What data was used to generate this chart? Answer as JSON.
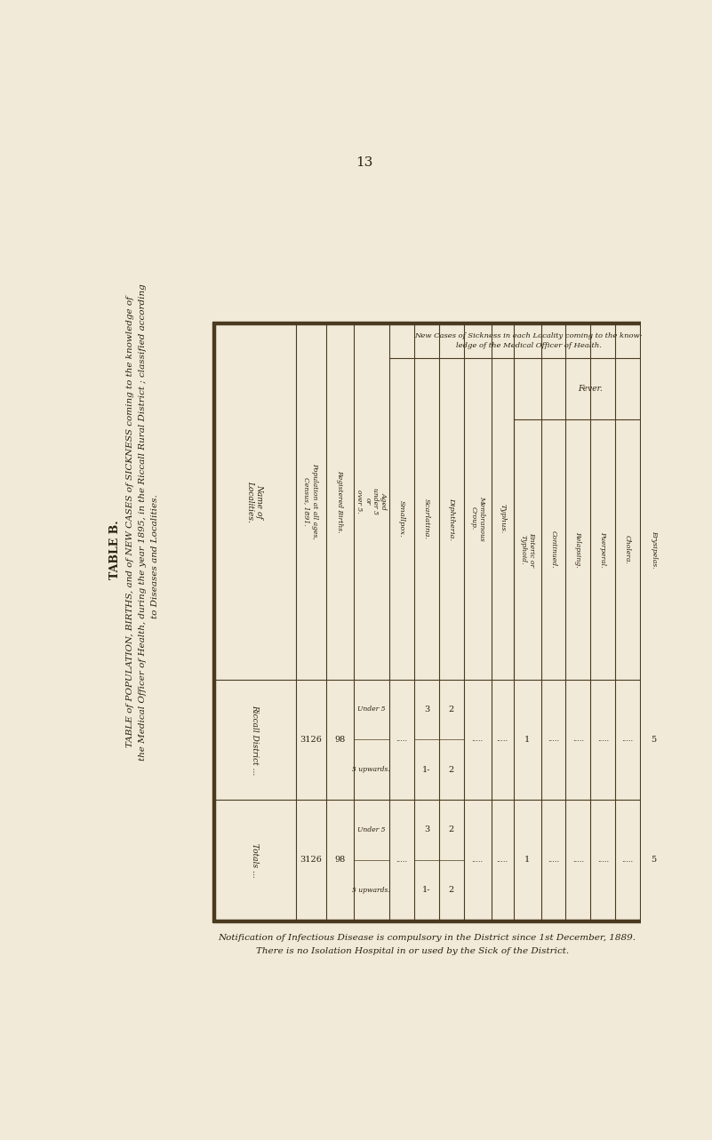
{
  "page_number": "13",
  "bg_color": "#f2ead8",
  "text_color": "#2a2010",
  "line_color": "#4a3a20",
  "title_bold": "TABLE B.",
  "title_line2": "TABLE of POPULATION, BIRTHS, and of NEW CASES of SICKNESS coming to the knowledge of",
  "title_line3": "the Medical Officer of Health, during the year 1895, in the Riccall Rural District ; classified according",
  "title_line4": "to Diseases and Localities.",
  "new_cases_label_line1": "New Cases of Sickness in each Locality coming to the know-",
  "new_cases_label_line2": "ledge of the Medical Officer of Health.",
  "fever_label": "Fever.",
  "footer_line1": "Notification of Infectious Disease is compulsory in the District since 1st December, 1889.",
  "footer_line2": "There is no Isolation Hospital in or used by the Sick of the District.",
  "col_headers": [
    "Name of Localities.",
    "Population at all ages,\nCensus, 1891.",
    "Registered Births.",
    "Aged\nunder 5\nor\nover 5.",
    "Smallpox.",
    "Scarlatina.",
    "Diphtheria.",
    "MembranousCroup.",
    "Typhus.",
    "Enteric or\nTyphoid.",
    "Continued.",
    "Relapsing.",
    "Puerperal.",
    "Cholera.",
    "Erysipelas."
  ],
  "rows": [
    {
      "name": "Riccall District ...",
      "population": "3126",
      "births": "98",
      "smallpox": ".....",
      "scarlatina_u5": "3",
      "scarlatina_5up": "1-",
      "diphtheria_u5": "2",
      "diphtheria_5up": "2",
      "membranous": ".....",
      "typhus": ".....",
      "enteric": "1",
      "continued": ".....",
      "relapsing": ".....",
      "puerperal": ".....",
      "cholera": ".....",
      "erysipelas": "5"
    },
    {
      "name": "Totals ...",
      "population": "3126",
      "births": "98",
      "smallpox": ".....",
      "scarlatina_u5": "3",
      "scarlatina_5up": "1-",
      "diphtheria_u5": "2",
      "diphtheria_5up": "2",
      "membranous": ".....",
      "typhus": ".....",
      "enteric": "1",
      "continued": ".....",
      "relapsing": ".....",
      "puerperal": ".....",
      "cholera": ".....",
      "erysipelas": "5"
    }
  ]
}
